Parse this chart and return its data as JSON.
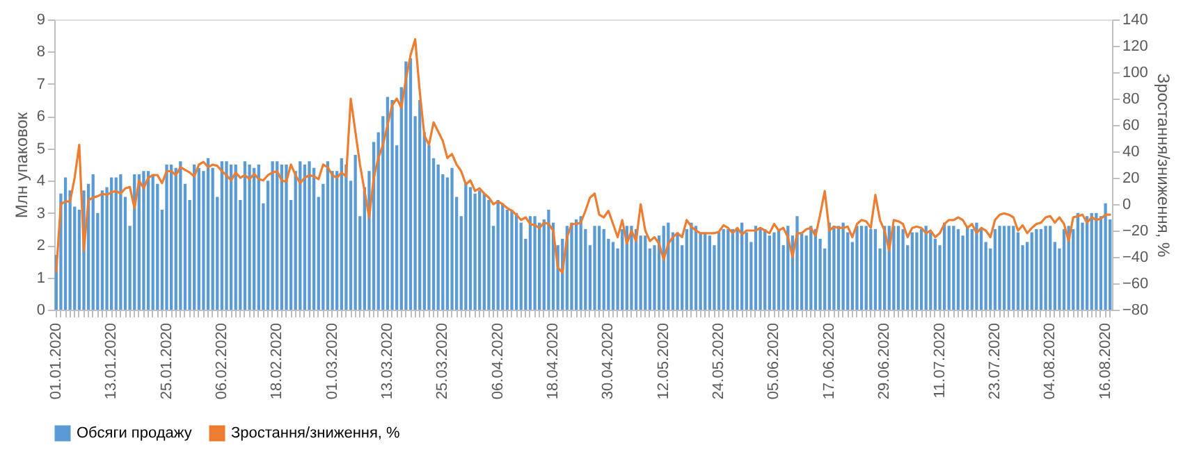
{
  "chart_data": {
    "type": "bar",
    "categories": [
      "01.01.2020",
      null,
      null,
      null,
      null,
      null,
      null,
      null,
      null,
      null,
      null,
      null,
      "13.01.2020",
      null,
      null,
      null,
      null,
      null,
      null,
      null,
      null,
      null,
      null,
      null,
      "25.01.2020",
      null,
      null,
      null,
      null,
      null,
      null,
      null,
      null,
      null,
      null,
      null,
      "06.02.2020",
      null,
      null,
      null,
      null,
      null,
      null,
      null,
      null,
      null,
      null,
      null,
      "18.02.2020",
      null,
      null,
      null,
      null,
      null,
      null,
      null,
      null,
      null,
      null,
      null,
      "01.03.2020",
      null,
      null,
      null,
      null,
      null,
      null,
      null,
      null,
      null,
      null,
      null,
      "13.03.2020",
      null,
      null,
      null,
      null,
      null,
      null,
      null,
      null,
      null,
      null,
      null,
      "25.03.2020",
      null,
      null,
      null,
      null,
      null,
      null,
      null,
      null,
      null,
      null,
      null,
      "06.04.2020",
      null,
      null,
      null,
      null,
      null,
      null,
      null,
      null,
      null,
      null,
      null,
      "18.04.2020",
      null,
      null,
      null,
      null,
      null,
      null,
      null,
      null,
      null,
      null,
      null,
      "30.04.2020",
      null,
      null,
      null,
      null,
      null,
      null,
      null,
      null,
      null,
      null,
      null,
      "12.05.2020",
      null,
      null,
      null,
      null,
      null,
      null,
      null,
      null,
      null,
      null,
      null,
      "24.05.2020",
      null,
      null,
      null,
      null,
      null,
      null,
      null,
      null,
      null,
      null,
      null,
      "05.06.2020",
      null,
      null,
      null,
      null,
      null,
      null,
      null,
      null,
      null,
      null,
      null,
      "17.06.2020",
      null,
      null,
      null,
      null,
      null,
      null,
      null,
      null,
      null,
      null,
      null,
      "29.06.2020",
      null,
      null,
      null,
      null,
      null,
      null,
      null,
      null,
      null,
      null,
      null,
      "11.07.2020",
      null,
      null,
      null,
      null,
      null,
      null,
      null,
      null,
      null,
      null,
      null,
      "23.07.2020",
      null,
      null,
      null,
      null,
      null,
      null,
      null,
      null,
      null,
      null,
      null,
      "04.08.2020",
      null,
      null,
      null,
      null,
      null,
      null,
      null,
      null,
      null,
      null,
      null,
      "16.08.2020",
      null
    ],
    "series": [
      {
        "name": "Обсяги продажу",
        "color": "#5b9bd5",
        "values": [
          1.7,
          3.6,
          4.1,
          3.7,
          3.2,
          3.1,
          3.7,
          3.9,
          4.2,
          3.0,
          3.7,
          3.8,
          4.1,
          4.1,
          4.2,
          3.5,
          2.6,
          4.2,
          4.2,
          4.3,
          4.3,
          4.2,
          3.9,
          3.1,
          4.5,
          4.5,
          4.4,
          4.6,
          3.9,
          3.4,
          4.5,
          4.4,
          4.3,
          4.7,
          4.4,
          3.5,
          4.6,
          4.6,
          4.5,
          4.5,
          3.4,
          4.6,
          4.5,
          4.4,
          4.5,
          3.3,
          4.0,
          4.6,
          4.6,
          4.5,
          4.5,
          3.4,
          4.3,
          4.6,
          4.5,
          4.6,
          4.4,
          3.5,
          3.9,
          4.6,
          4.3,
          4.3,
          4.7,
          4.5,
          4.0,
          4.8,
          2.9,
          3.8,
          4.3,
          5.2,
          5.5,
          6.0,
          6.6,
          6.5,
          5.1,
          6.9,
          7.7,
          7.8,
          6.0,
          6.5,
          5.5,
          5.1,
          4.7,
          4.5,
          4.2,
          4.1,
          4.4,
          3.5,
          2.9,
          3.9,
          3.8,
          3.6,
          3.7,
          3.6,
          3.4,
          2.6,
          3.4,
          3.3,
          3.1,
          3.1,
          3.0,
          2.7,
          2.2,
          2.9,
          2.9,
          2.7,
          2.8,
          3.1,
          2.7,
          2.0,
          2.2,
          2.6,
          2.7,
          2.8,
          2.9,
          2.5,
          2.0,
          2.6,
          2.6,
          2.5,
          2.2,
          2.1,
          1.9,
          2.5,
          2.6,
          2.6,
          2.5,
          2.3,
          2.3,
          1.9,
          2.0,
          2.3,
          2.6,
          2.7,
          2.4,
          2.4,
          2.0,
          2.5,
          2.7,
          2.6,
          2.4,
          2.4,
          2.3,
          2.0,
          2.4,
          2.5,
          2.5,
          2.5,
          2.5,
          2.7,
          2.4,
          2.1,
          2.6,
          2.5,
          2.5,
          2.3,
          2.4,
          2.5,
          2.0,
          2.6,
          2.3,
          2.9,
          2.4,
          2.3,
          2.6,
          2.5,
          2.2,
          1.9,
          2.7,
          2.6,
          2.6,
          2.7,
          2.4,
          2.1,
          2.6,
          2.6,
          2.6,
          2.5,
          2.5,
          1.9,
          2.6,
          2.6,
          2.6,
          2.6,
          2.5,
          2.0,
          2.4,
          2.4,
          2.5,
          2.6,
          2.4,
          2.2,
          2.0,
          2.7,
          2.6,
          2.6,
          2.5,
          2.3,
          2.6,
          2.5,
          2.7,
          2.5,
          2.1,
          1.9,
          2.5,
          2.6,
          2.6,
          2.6,
          2.6,
          2.4,
          2.0,
          2.1,
          2.4,
          2.5,
          2.5,
          2.6,
          2.6,
          2.1,
          1.9,
          2.5,
          2.6,
          2.5,
          3.0,
          2.7,
          2.9,
          3.0,
          3.0,
          2.9,
          3.3,
          2.8
        ]
      },
      {
        "name": "Зростання/зниження, %",
        "type": "line",
        "axis": "y2",
        "color": "#ed7d31",
        "values": [
          -51,
          0,
          2,
          2,
          20,
          45,
          -35,
          3,
          5,
          6,
          8,
          7,
          9,
          10,
          8,
          12,
          13,
          -3,
          18,
          12,
          20,
          22,
          22,
          16,
          25,
          25,
          22,
          28,
          26,
          24,
          21,
          30,
          32,
          28,
          30,
          29,
          25,
          22,
          18,
          24,
          20,
          22,
          19,
          23,
          19,
          18,
          22,
          24,
          25,
          18,
          17,
          30,
          22,
          16,
          20,
          22,
          21,
          19,
          30,
          28,
          22,
          20,
          24,
          21,
          80,
          55,
          30,
          10,
          -10,
          20,
          35,
          45,
          60,
          75,
          80,
          73,
          95,
          113,
          125,
          85,
          52,
          45,
          62,
          55,
          48,
          35,
          38,
          30,
          25,
          15,
          18,
          10,
          12,
          8,
          5,
          0,
          2,
          0,
          -3,
          -5,
          -8,
          -12,
          -10,
          -15,
          -16,
          -18,
          -14,
          -15,
          -20,
          -48,
          -52,
          -25,
          -15,
          -15,
          -14,
          -5,
          5,
          8,
          -8,
          -10,
          -5,
          -15,
          -25,
          -12,
          -30,
          -20,
          -28,
          0,
          -20,
          -28,
          -25,
          -30,
          -42,
          -30,
          -25,
          -22,
          -25,
          -12,
          -17,
          -20,
          -22,
          -22,
          -22,
          -22,
          -21,
          -16,
          -18,
          -22,
          -18,
          -23,
          -20,
          -20,
          -20,
          -18,
          -20,
          -22,
          -15,
          -20,
          -18,
          -25,
          -40,
          -22,
          -22,
          -19,
          -18,
          -24,
          -8,
          10,
          -20,
          -17,
          -18,
          -18,
          -17,
          -25,
          -15,
          -12,
          -13,
          -18,
          7,
          -12,
          -20,
          -35,
          -12,
          -13,
          -15,
          -25,
          -18,
          -17,
          -18,
          -22,
          -20,
          -25,
          -22,
          -15,
          -12,
          -12,
          -10,
          -12,
          -18,
          -15,
          -22,
          -18,
          -20,
          -25,
          -12,
          -8,
          -7,
          -8,
          -10,
          -20,
          -16,
          -22,
          -18,
          -15,
          -14,
          -10,
          -9,
          -14,
          -10,
          -15,
          -28,
          -10,
          -9,
          -8,
          -14,
          -10,
          -12,
          -11,
          -8,
          -8
        ]
      }
    ],
    "ylabel": "Млн упаковок",
    "y2label": "Зростання/зниження, %",
    "ylim": [
      0,
      9
    ],
    "yticks": [
      0,
      1,
      2,
      3,
      4,
      5,
      6,
      7,
      8,
      9
    ],
    "y2lim": [
      -80,
      140
    ],
    "y2ticks": [
      -80,
      -60,
      -40,
      -20,
      0,
      20,
      40,
      60,
      80,
      100,
      120,
      140
    ],
    "legend": "bottom",
    "grid": false
  }
}
